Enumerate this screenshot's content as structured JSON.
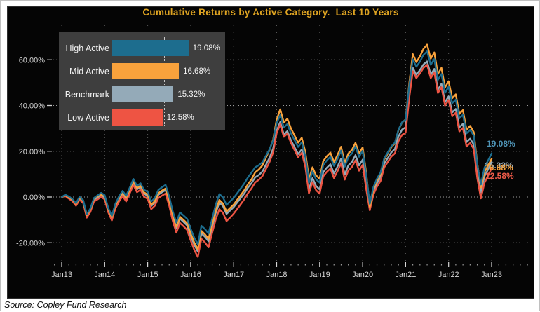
{
  "title": "Cumulative Returns by Active Category.  Last 10 Years",
  "source": "Source: Copley Fund Research",
  "colors": {
    "high": "#1d6d8e",
    "mid": "#f9a23c",
    "benchmark": "#94aab8",
    "low": "#ee5443",
    "high_label": "#4f94b6",
    "mid_label": "#f9a23c",
    "benchmark_label": "#9db0bc",
    "low_label": "#ef5b49",
    "title_text": "#dfa422",
    "axis_text": "#d6d6d6",
    "legend_bg": "#3e3e3e",
    "panel_bg": "#050505"
  },
  "legend": {
    "items": [
      {
        "label": "High Active",
        "value_label": "19.08%",
        "value": 19.08,
        "color_key": "high"
      },
      {
        "label": "Mid Active",
        "value_label": "16.68%",
        "value": 16.68,
        "color_key": "mid"
      },
      {
        "label": "Benchmark",
        "value_label": "15.32%",
        "value": 15.32,
        "color_key": "benchmark"
      },
      {
        "label": "Low Active",
        "value_label": "12.58%",
        "value": 12.58,
        "color_key": "low"
      }
    ]
  },
  "end_labels": [
    {
      "text": "19.08%",
      "color_key": "high_label"
    },
    {
      "text": "15.32%",
      "color_key": "benchmark_label"
    },
    {
      "text": "16.68%",
      "color_key": "mid_label"
    },
    {
      "text": "12.58%",
      "color_key": "low_label"
    }
  ],
  "chart_data": {
    "type": "line",
    "title": "Cumulative Returns by Active Category.  Last 10 Years",
    "x_unit": "months, Jan 2013 - Jan 2023",
    "x_tick_labels": [
      "Jan13",
      "Jan14",
      "Jan15",
      "Jan16",
      "Jan17",
      "Jan18",
      "Jan19",
      "Jan20",
      "Jan21",
      "Jan22",
      "Jan23"
    ],
    "y_ticks": [
      {
        "value": 60,
        "label": "60.00%"
      },
      {
        "value": 40,
        "label": "40.00%"
      },
      {
        "value": 20,
        "label": "20.00%"
      },
      {
        "value": 0,
        "label": "0.00%"
      },
      {
        "value": -20,
        "label": "-20.00%"
      }
    ],
    "ylim": [
      -29,
      76
    ],
    "grid": "dotted",
    "legend_position": "inset top-left bar chart",
    "series": [
      {
        "name": "High Active",
        "color_key": "high",
        "final_value": 19.08,
        "values": [
          0,
          1,
          0.2,
          -0.9,
          -2.7,
          0.1,
          -1.4,
          -7.5,
          -5,
          -0.4,
          0.7,
          1.8,
          0.8,
          -4.8,
          -8.2,
          -2.9,
          0.2,
          2.7,
          0.5,
          4.2,
          7.9,
          4.9,
          6,
          3.1,
          2.3,
          -2,
          -0.4,
          3.1,
          4.3,
          5.3,
          0.2,
          -6.3,
          -11.2,
          -6.7,
          -8.1,
          -9.5,
          -13.9,
          -17.8,
          -20.7,
          -12.6,
          -14,
          -16,
          -9.4,
          -3.3,
          1.3,
          -0.1,
          -3.5,
          -1.9,
          -0.4,
          1.7,
          3.8,
          6,
          8.6,
          10.7,
          13,
          13.9,
          15.2,
          18,
          20.8,
          24.6,
          32.3,
          35.8,
          30.4,
          31.9,
          27.9,
          24.9,
          21.9,
          23.9,
          17.8,
          6.2,
          11.2,
          7.7,
          6.3,
          13.9,
          16,
          17.6,
          13.6,
          16.7,
          20.3,
          13.3,
          17.4,
          19,
          22.1,
          17.6,
          20.2,
          9.5,
          -3,
          4.3,
          8,
          10.7,
          16.9,
          19.5,
          22.2,
          23.8,
          29.5,
          32.7,
          33.8,
          48.5,
          60.2,
          57,
          59.2,
          62.2,
          63.7,
          57.8,
          60.3,
          51.2,
          53.8,
          45.6,
          48.2,
          41,
          42.6,
          34.4,
          36,
          27.8,
          29.4,
          26.9,
          14,
          5.5,
          12.8,
          15.9,
          19.08
        ]
      },
      {
        "name": "Mid Active",
        "color_key": "mid",
        "final_value": 16.68,
        "values": [
          0,
          0.8,
          -0.1,
          -1.2,
          -3,
          -0.3,
          -1.8,
          -7.9,
          -5.4,
          -0.8,
          0.2,
          1.2,
          0.2,
          -5.4,
          -8.8,
          -3.5,
          -0.5,
          1.9,
          -0.3,
          3.3,
          6.9,
          3.9,
          5,
          2,
          1.1,
          -3.3,
          -1.8,
          1.7,
          2.8,
          3.7,
          -1.5,
          -8,
          -13,
          -8.6,
          -10,
          -11.5,
          -16,
          -19.9,
          -22.8,
          -14.8,
          -16.3,
          -18.3,
          -11.8,
          -5.8,
          -1.3,
          -2.8,
          -6.3,
          -4.8,
          -3.3,
          -1.2,
          0.9,
          3,
          5.6,
          7.7,
          10.8,
          12,
          13.8,
          17.2,
          20.6,
          25,
          33.8,
          38.3,
          32.6,
          34.2,
          30,
          26.9,
          23.8,
          25.9,
          19.7,
          7.9,
          13,
          9.4,
          8,
          15.7,
          17.8,
          19.4,
          15.3,
          18.4,
          22,
          14.9,
          19,
          20.6,
          23.7,
          19.1,
          21.7,
          10.5,
          -4.3,
          3.4,
          7.2,
          10,
          16.3,
          19,
          21.8,
          23.5,
          29.3,
          32.6,
          33.9,
          49.5,
          62.5,
          59,
          61.5,
          64.8,
          66.6,
          60.5,
          63.2,
          53.8,
          56.5,
          47.9,
          50.6,
          43.2,
          44.9,
          36.3,
          38,
          29.4,
          31.1,
          28.4,
          14.6,
          4.2,
          10.9,
          13.7,
          16.68
        ]
      },
      {
        "name": "Benchmark",
        "color_key": "benchmark",
        "final_value": 15.32,
        "values": [
          0,
          0.5,
          -0.5,
          -1.5,
          -3.5,
          -0.6,
          -2.1,
          -8.3,
          -5.8,
          -1.2,
          -0.2,
          0.8,
          -0.2,
          -5.8,
          -9.3,
          -4,
          -1,
          1.4,
          -0.8,
          2.8,
          6.4,
          3.3,
          4.4,
          1.4,
          0.5,
          -3.9,
          -2.4,
          1,
          2.1,
          3,
          -2.2,
          -8.8,
          -13.8,
          -9.4,
          -10.9,
          -12.4,
          -16.9,
          -20.9,
          -23.9,
          -15.9,
          -17.4,
          -19.4,
          -12.9,
          -6.9,
          -2.4,
          -3.9,
          -7.4,
          -5.9,
          -4.4,
          -2.4,
          -0.4,
          1.6,
          4.1,
          6.1,
          8.6,
          9.6,
          11.1,
          14.1,
          17.1,
          21.1,
          29,
          32.8,
          27.3,
          28.8,
          24.8,
          21.8,
          18.8,
          20.8,
          14.8,
          3.3,
          8.3,
          4.8,
          3.3,
          10.8,
          12.8,
          14.3,
          10.3,
          13.3,
          16.8,
          9.8,
          13.8,
          15.3,
          18.3,
          13.8,
          16.3,
          6,
          -4.5,
          2.5,
          6,
          8.5,
          14.5,
          17,
          19.5,
          21,
          26.5,
          29.5,
          30.5,
          45,
          56.5,
          53.5,
          55.5,
          58,
          59.3,
          53.5,
          56,
          47,
          49.5,
          41.5,
          44,
          37,
          38.5,
          30.5,
          32,
          24,
          25.5,
          23,
          10.5,
          2,
          9,
          12,
          15.32
        ]
      },
      {
        "name": "Low Active",
        "color_key": "low",
        "final_value": 12.58,
        "values": [
          0,
          0.4,
          -0.7,
          -1.8,
          -3.8,
          -1.2,
          -2.7,
          -9,
          -6.5,
          -2,
          -1,
          0,
          -1,
          -6.7,
          -10.2,
          -5,
          -2,
          0.4,
          -1.9,
          1.7,
          5.2,
          2.1,
          3.2,
          0.1,
          -0.8,
          -5.3,
          -3.8,
          -0.4,
          0.6,
          1.5,
          -3.8,
          -10.5,
          -15.6,
          -11.3,
          -12.8,
          -14.4,
          -19,
          -23.1,
          -26.2,
          -18.3,
          -19.9,
          -22,
          -15.6,
          -9.7,
          -5.3,
          -6.9,
          -10.5,
          -9,
          -7.3,
          -5.2,
          -3.1,
          -0.9,
          1.7,
          3.8,
          6.4,
          7.5,
          9.1,
          12.2,
          15.3,
          19.4,
          27.9,
          31.8,
          26.3,
          27.7,
          23.6,
          20.5,
          17.4,
          19.3,
          13.2,
          1.6,
          6.5,
          3,
          1.5,
          9,
          11,
          12.4,
          8.3,
          11.3,
          14.7,
          7.6,
          11.6,
          13.1,
          16.1,
          11.5,
          14,
          3.5,
          -5.8,
          1,
          4.5,
          7,
          12.9,
          15.3,
          17.7,
          19.1,
          24.4,
          27.2,
          28.1,
          43.2,
          55,
          52,
          54,
          56.5,
          57.8,
          52,
          54.5,
          45.5,
          48,
          40,
          42.4,
          35.3,
          36.8,
          28.7,
          30.2,
          22.1,
          23.6,
          21,
          8.2,
          -0.6,
          6.2,
          9.3,
          12.58
        ]
      }
    ]
  }
}
